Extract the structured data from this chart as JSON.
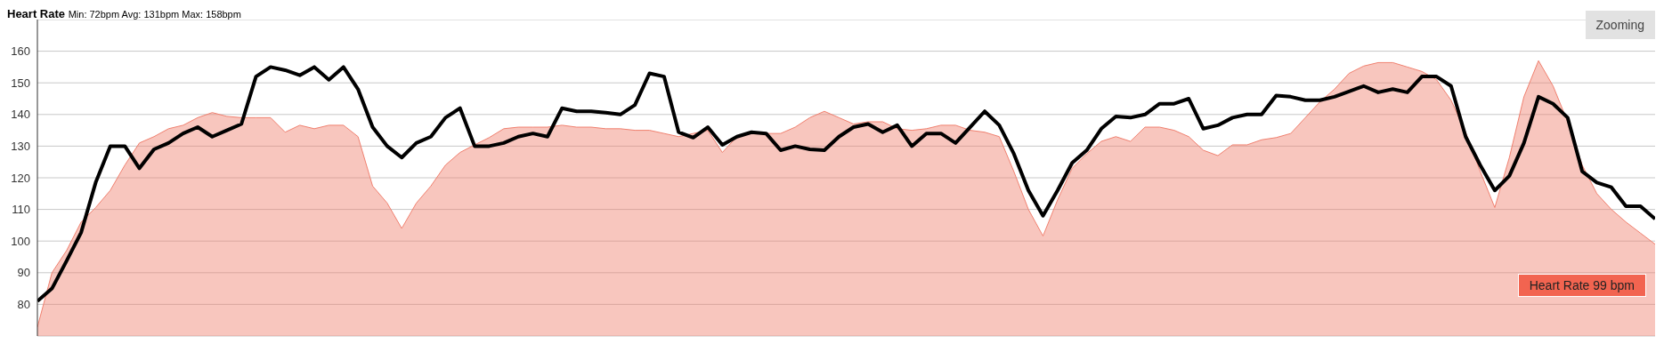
{
  "chart_data": {
    "type": "area",
    "title": "Heart Rate",
    "subtitle": "Min: 72bpm Avg: 131bpm Max: 158bpm",
    "annotations": [
      "Zooming",
      "Heart Rate 99 bpm"
    ],
    "categories": [
      null,
      null,
      null,
      null,
      null,
      null,
      null,
      null,
      null,
      null,
      null,
      null,
      null,
      null,
      null,
      null,
      null,
      null,
      null,
      null,
      null,
      null,
      null,
      null,
      null,
      null,
      null,
      null,
      null,
      null,
      null,
      null,
      null,
      null,
      null,
      null,
      null,
      null,
      null,
      null,
      null,
      null,
      null,
      null,
      null,
      null,
      null,
      null,
      null,
      null,
      null,
      null,
      null,
      null,
      null,
      null,
      null,
      null,
      null,
      null,
      null,
      null,
      null,
      null,
      null,
      null,
      null,
      null,
      null,
      null,
      null,
      null,
      null,
      null,
      null,
      null,
      null,
      null,
      null,
      null,
      null,
      null,
      null,
      null,
      null,
      null,
      null,
      null,
      null,
      null,
      null,
      null,
      null,
      null,
      null,
      null,
      null,
      null,
      null,
      null,
      null,
      null,
      null,
      null,
      null,
      null,
      null,
      null,
      null,
      null,
      null,
      null
    ],
    "series": [
      {
        "color": "#f0806f",
        "values": [
          72.8,
          90,
          97,
          106,
          110.6,
          116,
          124,
          131,
          133,
          135.5,
          136.6,
          139,
          140.6,
          139.4,
          139,
          139,
          139,
          134.4,
          136.6,
          135.5,
          136.6,
          136.6,
          133,
          117.4,
          112,
          104,
          112,
          117.4,
          124,
          128,
          130.4,
          132.7,
          135.5,
          136,
          136,
          136,
          136.6,
          136,
          136,
          135.5,
          135.5,
          135,
          135,
          134,
          133,
          134,
          135,
          128,
          133,
          134,
          134,
          134,
          136,
          139,
          141,
          139,
          137,
          137.7,
          137.7,
          135.5,
          135,
          135.5,
          136.6,
          136.6,
          135,
          134.4,
          133,
          122,
          110,
          101.6,
          113,
          123,
          127.6,
          131.5,
          133,
          131.5,
          136,
          136,
          135,
          133,
          128.7,
          127,
          130.4,
          130.4,
          132,
          132.7,
          134,
          139,
          144,
          148,
          153,
          155.3,
          156.4,
          156.4,
          155,
          153.6,
          151,
          144.5,
          134.4,
          122,
          110.6,
          126.4,
          145.6,
          157,
          149,
          137.7,
          124,
          115,
          110,
          106,
          102.5,
          99
        ]
      },
      {
        "type": "line",
        "color": "#000000",
        "values": [
          81,
          85,
          93.7,
          102.7,
          118.5,
          130,
          130,
          123,
          129,
          131,
          134,
          136,
          133,
          135,
          137,
          152,
          155,
          154,
          152.4,
          155,
          151,
          155,
          148,
          136,
          130,
          126.4,
          131,
          133,
          139,
          142,
          130,
          130,
          131,
          133,
          134,
          133,
          142,
          141,
          141,
          140.6,
          140,
          143,
          153,
          152,
          134.4,
          132.7,
          136,
          130.4,
          133,
          134.4,
          134,
          128.7,
          130,
          129,
          128.7,
          133,
          136,
          137,
          134.4,
          136.6,
          130,
          134,
          134,
          131,
          136,
          141,
          136.6,
          127.6,
          116,
          108,
          116,
          124.7,
          128.7,
          135.5,
          139.4,
          139,
          140,
          143.4,
          143.4,
          145,
          135.5,
          136.6,
          139,
          140,
          140,
          146,
          145.6,
          144.5,
          144.5,
          145.6,
          147.3,
          149,
          147,
          148,
          147,
          152,
          152,
          149,
          133,
          124,
          116,
          120.6,
          131,
          145.6,
          143.4,
          139,
          122,
          118.5,
          117,
          111,
          111,
          107
        ]
      }
    ],
    "ylim": [
      70,
      170
    ],
    "yticks": [
      80,
      90,
      100,
      110,
      120,
      130,
      140,
      150,
      160,
      {
        "value": 170,
        "label": null
      }
    ],
    "grid": true
  }
}
